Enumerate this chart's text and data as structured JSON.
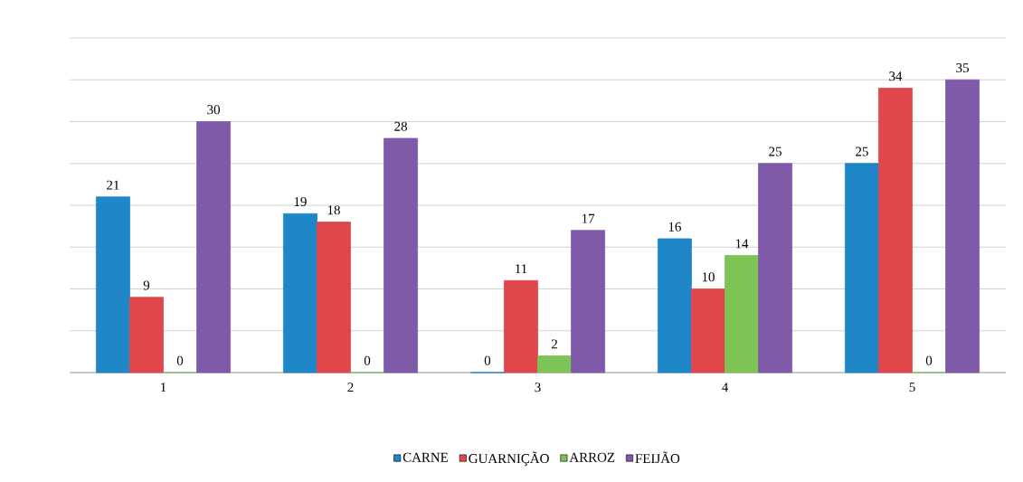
{
  "chart_data": {
    "type": "bar",
    "categories": [
      "1",
      "2",
      "3",
      "4",
      "5"
    ],
    "series": [
      {
        "name": "CARNE",
        "color": "#1f86c8",
        "values": [
          21,
          19,
          0,
          16,
          25
        ]
      },
      {
        "name": "GUARNIÇÃO",
        "color": "#e0474c",
        "values": [
          9,
          18,
          11,
          10,
          34
        ]
      },
      {
        "name": "ARROZ",
        "color": "#7dc356",
        "values": [
          0,
          0,
          2,
          14,
          0
        ]
      },
      {
        "name": "FEIJÃO",
        "color": "#7f5aa8",
        "values": [
          30,
          28,
          17,
          25,
          35
        ]
      }
    ],
    "ylim": [
      0,
      40
    ],
    "yticks": [
      {
        "value": 0,
        "label": null
      },
      {
        "value": 5,
        "label": null
      },
      {
        "value": 10,
        "label": null
      },
      {
        "value": 15,
        "label": null
      },
      {
        "value": 20,
        "label": null
      },
      {
        "value": 25,
        "label": null
      },
      {
        "value": 30,
        "label": null
      },
      {
        "value": 35,
        "label": null
      },
      {
        "value": 40,
        "label": null
      }
    ],
    "tick_labels": "x",
    "grid": "y",
    "legend": "bottom",
    "data_labels": true
  }
}
